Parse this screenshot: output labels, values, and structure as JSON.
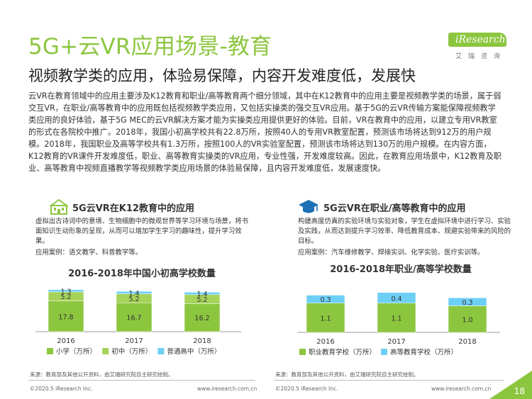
{
  "header": {
    "title": "5G+云VR应用场景-教育",
    "subtitle": "视频教学类的应用，体验易保障，内容开发难度低，发展快",
    "logo_text": "iResearch",
    "logo_sub": "艾瑞咨询"
  },
  "intro": "云VR在教育领域中的应用主要涉及K12教育和职业/高等教育两个细分领域，其中在K12教育中的应用主要是视频教学类的场景，属于弱交互VR，在职业/高等教育中的应用既包括视频教学类应用，又包括实操类的强交互VR应用。基于5G的云VR传输方案能保障视频教学类应用的良好体验，基于5G MEC的云VR解决方案才能为实操类应用提供更好的体验。目前，VR在教育中的应用，以建立专用VR教室的形式在各院校中推广。2018年，我国小初高学校共有22.8万所，按照40人的专用VR教室配置，预测该市场将达到912万的用户规模。2018年，我国职业及高等学校共有1.3万所，按照100人的VR实验室配置，预测该市场将达到130万的用户规模。在内容方面，K12教育的VR课件开发难度低，职业、高等教育实操类的VR应用，专业性强，开发难度较高。因此，在教育应用场景中，K12教育及职业、高等教育中视频直播教学等视频教学类应用场景的体验易保障，且内容开发难度低，发展速度快。",
  "left_panel": {
    "heading": "5G云VR在K12教育中的应用",
    "desc": "虚拟出古诗词中的意境、生物细胞中的微观世界等学习环境与场景，将书面知识生动形象的呈现，从而可以增加学生学习的趣味性，提升学习效果。",
    "case": "应用案例：语文教学、科普教学等。",
    "source": "来源：教育部及其他公开资料，由艾瑞研究院自主研究绘制。",
    "footer_left": "©2020.5 iResearch Inc.",
    "footer_right": "www.iresearch.com.cn"
  },
  "right_panel": {
    "heading": "5G云VR在职业/高等教育中的应用",
    "desc": "构建高度仿真的实验环境与实验对象，学生在虚拟环境中进行学习、实验及实践，从而达到提升学习效率、降低教育成本、规避实验带来的风险的目标。",
    "case": "应用案例：汽车维修教学、焊接实训、化学实验、医疗实训等。",
    "source": "来源：教育部及其他公开资料，由艾瑞研究院自主研究绘制。",
    "footer_left": "©2020.5 iResearch Inc.",
    "footer_right": "www.iresearch.com.cn"
  },
  "page_number": "18",
  "colors": {
    "accent": "#8cc63f",
    "bar_light": "#6ecff6",
    "bar_dark": "#1a6fb5"
  },
  "icons": {
    "left": "school-building-icon",
    "right": "graduation-cap-icon"
  },
  "chart_data": [
    {
      "type": "bar",
      "stacked": true,
      "title": "2016-2018年中国小初高学校数量",
      "categories": [
        "2016",
        "2017",
        "2018"
      ],
      "series": [
        {
          "name": "小学（万所）",
          "values": [
            17.8,
            16.7,
            16.2
          ],
          "color": "#8cc63f"
        },
        {
          "name": "初中（万所）",
          "values": [
            5.2,
            5.2,
            5.2
          ],
          "color": "#a6d35a"
        },
        {
          "name": "普通高中（万所）",
          "values": [
            1.3,
            1.4,
            1.4
          ],
          "color": "#6ecff6"
        }
      ],
      "ylim": [
        0,
        25
      ]
    },
    {
      "type": "bar",
      "stacked": true,
      "title": "2016-2018年职业/高等学校数量",
      "categories": [
        "2016",
        "2017",
        "2018"
      ],
      "series": [
        {
          "name": "职业教育学校（万所）",
          "values": [
            1.1,
            1.1,
            1.0
          ],
          "color": "#8cc63f"
        },
        {
          "name": "高等教育学校（万所）",
          "values": [
            0.3,
            0.4,
            0.3
          ],
          "color": "#6ecff6"
        }
      ],
      "ylim": [
        0,
        1.6
      ]
    }
  ]
}
